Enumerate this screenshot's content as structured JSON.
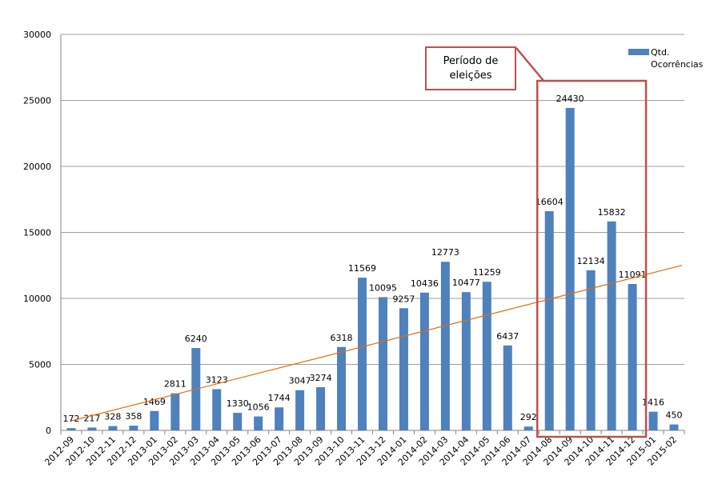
{
  "chart_data": {
    "type": "bar",
    "title": "",
    "xlabel": "",
    "ylabel": "",
    "ylim": [
      0,
      30000
    ],
    "yticks": [
      0,
      5000,
      10000,
      15000,
      20000,
      25000,
      30000
    ],
    "grid": true,
    "legend_position": "top-right",
    "categories": [
      "2012-09",
      "2012-10",
      "2012-11",
      "2012-12",
      "2013-01",
      "2013-02",
      "2013-03",
      "2013-04",
      "2013-05",
      "2013-06",
      "2013-07",
      "2013-08",
      "2013-09",
      "2013-10",
      "2013-11",
      "2013-12",
      "2014-01",
      "2014-02",
      "2014-03",
      "2014-04",
      "2014-05",
      "2014-06",
      "2014-07",
      "2014-08",
      "2014-09",
      "2014-10",
      "2014-11",
      "2014-12",
      "2015-01",
      "2015-02"
    ],
    "series": [
      {
        "name": "Qtd. Ocorrências",
        "color": "#4f81bd",
        "values": [
          172,
          217,
          328,
          358,
          1469,
          2811,
          6240,
          3123,
          1330,
          1056,
          1744,
          3047,
          3274,
          6318,
          11569,
          10095,
          9257,
          10436,
          12773,
          10477,
          11259,
          6437,
          292,
          16604,
          24430,
          12134,
          15832,
          11091,
          1416,
          450
        ]
      }
    ],
    "trendline": {
      "type": "linear",
      "color": "#e46c0a"
    },
    "annotation": {
      "text": "Período de eleições",
      "highlight_range": [
        "2014-08",
        "2014-12"
      ],
      "color": "#c0504d"
    }
  },
  "legend": {
    "label_line1": "Qtd.",
    "label_line2": "Ocorrências"
  },
  "callout": {
    "line1": "Período de",
    "line2": "eleições"
  }
}
